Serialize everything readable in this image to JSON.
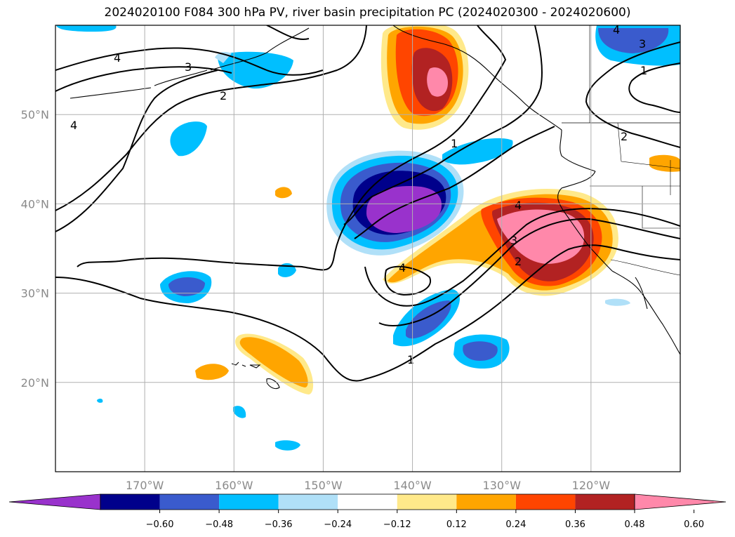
{
  "title": "2024020100 F084 300 hPa PV, river basin precipitation PC (2024020300 - 2024020600)",
  "latitude_labels": [
    {
      "lat": 50,
      "text": "50°N"
    },
    {
      "lat": 40,
      "text": "40°N"
    },
    {
      "lat": 30,
      "text": "30°N"
    },
    {
      "lat": 20,
      "text": "20°N"
    }
  ],
  "longitude_labels": [
    {
      "lon": -170,
      "text": "170°W"
    },
    {
      "lon": -160,
      "text": "160°W"
    },
    {
      "lon": -150,
      "text": "150°W"
    },
    {
      "lon": -140,
      "text": "140°W"
    },
    {
      "lon": -130,
      "text": "130°W"
    },
    {
      "lon": -120,
      "text": "120°W"
    }
  ],
  "colorbar": {
    "colors": [
      "#9932cc",
      "#00008b",
      "#3a5bcd",
      "#00bfff",
      "#b0e0f8",
      "#ffffff",
      "#ffe98a",
      "#ffa500",
      "#ff4500",
      "#b22222",
      "#ff88aa"
    ],
    "ticks": [
      "−0.60",
      "−0.48",
      "−0.36",
      "−0.24",
      "−0.12",
      "0.12",
      "0.24",
      "0.36",
      "0.48",
      "0.60"
    ]
  },
  "pv_contour_labels": [
    "4",
    "3",
    "2",
    "4",
    "1",
    "2",
    "3",
    "4",
    "1",
    "4",
    "3",
    "2",
    "4",
    "1"
  ]
}
